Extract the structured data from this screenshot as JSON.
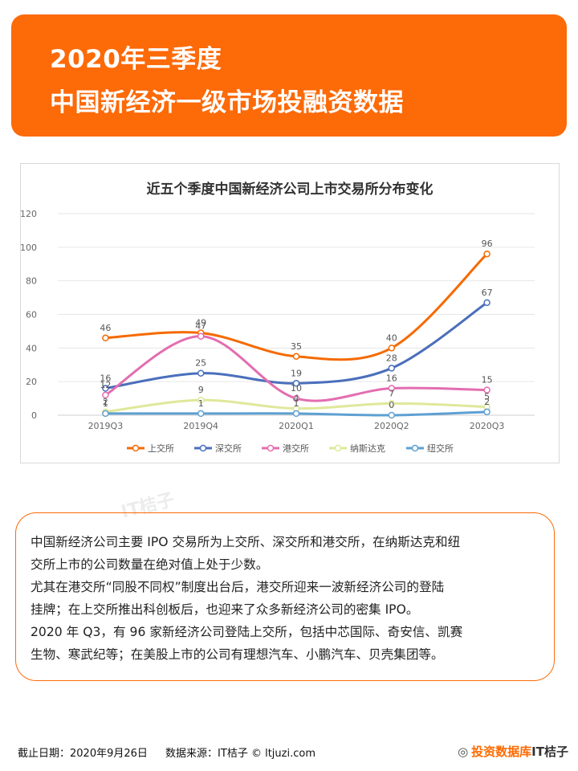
{
  "header": {
    "line1": "2020年三季度",
    "line2": "中国新经济一级市场投融资数据"
  },
  "chart_data": {
    "type": "line",
    "title": "近五个季度中国新经济公司上市交易所分布变化",
    "categories": [
      "2019Q3",
      "2019Q4",
      "2020Q1",
      "2020Q2",
      "2020Q3"
    ],
    "ylim": [
      0,
      120
    ],
    "yticks": [
      0,
      20,
      40,
      60,
      80,
      100,
      120
    ],
    "grid": true,
    "legend": "bottom",
    "series": [
      {
        "name": "上交所",
        "values": [
          46,
          49,
          35,
          40,
          96
        ],
        "color": "#f56a00"
      },
      {
        "name": "深交所",
        "values": [
          16,
          25,
          19,
          28,
          67
        ],
        "color": "#4a6fbb"
      },
      {
        "name": "港交所",
        "values": [
          12,
          47,
          10,
          16,
          15
        ],
        "color": "#e36db0"
      },
      {
        "name": "纳斯达克",
        "values": [
          2,
          9,
          4,
          7,
          5
        ],
        "color": "#dfe89a"
      },
      {
        "name": "纽交所",
        "values": [
          1,
          1,
          1,
          0,
          2
        ],
        "color": "#5ea0d2"
      }
    ]
  },
  "notes": [
    "中国新经济公司主要 IPO 交易所为上交所、深交所和港交所，在纳斯达克和纽",
    "交所上市的公司数量在绝对值上处于少数。",
    "尤其在港交所“同股不同权”制度出台后，港交所迎来一波新经济公司的登陆",
    "挂牌；在上交所推出科创板后，也迎来了众多新经济公司的密集 IPO。",
    "2020 年 Q3，有 96 家新经济公司登陆上交所，包括中芯国际、奇安信、凯赛",
    "生物、寒武纪等；在美股上市的公司有理想汽车、小鹏汽车、贝壳集团等。"
  ],
  "watermark": "IT桔子",
  "footer": {
    "date": "截止日期：2020年9月26日",
    "source": "数据来源：IT桔子 © ltjuzi.com"
  },
  "brand": {
    "wechat_label": "投资数据库",
    "name": "IT桔子"
  }
}
